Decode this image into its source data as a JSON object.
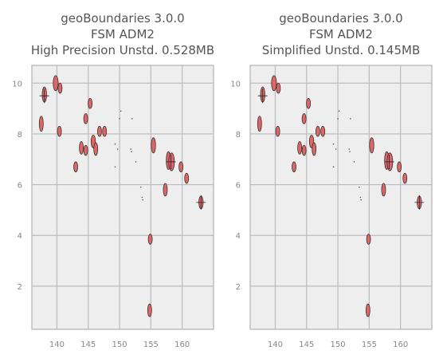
{
  "chart_data": [
    {
      "type": "map",
      "title_lines": [
        "geoBoundaries 3.0.0",
        "FSM ADM2",
        "High Precision Unstd. 0.528MB"
      ],
      "xlim": [
        136,
        165
      ],
      "ylim": [
        0.3,
        10.7
      ],
      "xticks": [
        140,
        145,
        150,
        155,
        160
      ],
      "yticks": [
        2,
        4,
        6,
        8,
        10
      ],
      "grid": true,
      "colors": {
        "fill": "#e06666",
        "edge": "#333333",
        "background": "#eeeeee",
        "grid": "#bbbbbb"
      },
      "islands": [
        {
          "x": 138.0,
          "y": 9.55,
          "rx": 0.35,
          "ry": 0.3
        },
        {
          "x": 139.8,
          "y": 10.0,
          "rx": 0.4,
          "ry": 0.3
        },
        {
          "x": 140.5,
          "y": 9.8,
          "rx": 0.25,
          "ry": 0.2
        },
        {
          "x": 137.5,
          "y": 8.4,
          "rx": 0.3,
          "ry": 0.3
        },
        {
          "x": 140.4,
          "y": 8.1,
          "rx": 0.25,
          "ry": 0.2
        },
        {
          "x": 145.3,
          "y": 9.2,
          "rx": 0.3,
          "ry": 0.2
        },
        {
          "x": 144.6,
          "y": 8.6,
          "rx": 0.25,
          "ry": 0.2
        },
        {
          "x": 146.8,
          "y": 8.1,
          "rx": 0.25,
          "ry": 0.2
        },
        {
          "x": 147.6,
          "y": 8.1,
          "rx": 0.25,
          "ry": 0.2
        },
        {
          "x": 143.9,
          "y": 7.45,
          "rx": 0.3,
          "ry": 0.25
        },
        {
          "x": 144.6,
          "y": 7.35,
          "rx": 0.25,
          "ry": 0.2
        },
        {
          "x": 143.0,
          "y": 6.7,
          "rx": 0.25,
          "ry": 0.2
        },
        {
          "x": 145.8,
          "y": 7.7,
          "rx": 0.35,
          "ry": 0.25
        },
        {
          "x": 146.2,
          "y": 7.4,
          "rx": 0.3,
          "ry": 0.25
        },
        {
          "x": 155.4,
          "y": 7.55,
          "rx": 0.35,
          "ry": 0.3
        },
        {
          "x": 157.8,
          "y": 6.95,
          "rx": 0.35,
          "ry": 0.35
        },
        {
          "x": 158.3,
          "y": 6.9,
          "rx": 0.45,
          "ry": 0.35
        },
        {
          "x": 159.8,
          "y": 6.7,
          "rx": 0.25,
          "ry": 0.2
        },
        {
          "x": 160.7,
          "y": 6.25,
          "rx": 0.25,
          "ry": 0.2
        },
        {
          "x": 157.3,
          "y": 5.8,
          "rx": 0.3,
          "ry": 0.25
        },
        {
          "x": 163.0,
          "y": 5.3,
          "rx": 0.35,
          "ry": 0.25
        },
        {
          "x": 154.9,
          "y": 3.85,
          "rx": 0.25,
          "ry": 0.2
        },
        {
          "x": 154.8,
          "y": 1.05,
          "rx": 0.3,
          "ry": 0.25
        }
      ],
      "dots": [
        {
          "x": 150.0,
          "y": 8.6
        },
        {
          "x": 150.2,
          "y": 8.9
        },
        {
          "x": 152.0,
          "y": 8.6
        },
        {
          "x": 149.3,
          "y": 7.6
        },
        {
          "x": 149.7,
          "y": 7.4
        },
        {
          "x": 151.8,
          "y": 7.4
        },
        {
          "x": 151.9,
          "y": 7.3
        },
        {
          "x": 152.6,
          "y": 6.9
        },
        {
          "x": 149.3,
          "y": 6.7
        },
        {
          "x": 153.4,
          "y": 5.9
        },
        {
          "x": 153.6,
          "y": 5.5
        },
        {
          "x": 153.7,
          "y": 5.4
        }
      ],
      "marks": [
        {
          "x": 158.2,
          "y": 6.9
        },
        {
          "x": 163.0,
          "y": 5.3
        },
        {
          "x": 138.0,
          "y": 9.5
        }
      ]
    },
    {
      "type": "map",
      "title_lines": [
        "geoBoundaries 3.0.0",
        "FSM ADM2",
        "Simplified Unstd. 0.145MB"
      ],
      "xlim": [
        136,
        165
      ],
      "ylim": [
        0.3,
        10.7
      ],
      "xticks": [
        140,
        145,
        150,
        155,
        160
      ],
      "yticks": [
        2,
        4,
        6,
        8,
        10
      ],
      "grid": true,
      "colors": {
        "fill": "#e06666",
        "edge": "#333333",
        "background": "#eeeeee",
        "grid": "#bbbbbb"
      },
      "islands": [
        {
          "x": 138.0,
          "y": 9.55,
          "rx": 0.35,
          "ry": 0.3
        },
        {
          "x": 139.8,
          "y": 10.0,
          "rx": 0.4,
          "ry": 0.3
        },
        {
          "x": 140.5,
          "y": 9.8,
          "rx": 0.25,
          "ry": 0.2
        },
        {
          "x": 137.5,
          "y": 8.4,
          "rx": 0.3,
          "ry": 0.3
        },
        {
          "x": 140.4,
          "y": 8.1,
          "rx": 0.25,
          "ry": 0.2
        },
        {
          "x": 145.3,
          "y": 9.2,
          "rx": 0.3,
          "ry": 0.2
        },
        {
          "x": 144.6,
          "y": 8.6,
          "rx": 0.25,
          "ry": 0.2
        },
        {
          "x": 146.8,
          "y": 8.1,
          "rx": 0.25,
          "ry": 0.2
        },
        {
          "x": 147.6,
          "y": 8.1,
          "rx": 0.25,
          "ry": 0.2
        },
        {
          "x": 143.9,
          "y": 7.45,
          "rx": 0.3,
          "ry": 0.25
        },
        {
          "x": 144.6,
          "y": 7.35,
          "rx": 0.25,
          "ry": 0.2
        },
        {
          "x": 143.0,
          "y": 6.7,
          "rx": 0.25,
          "ry": 0.2
        },
        {
          "x": 145.8,
          "y": 7.7,
          "rx": 0.35,
          "ry": 0.25
        },
        {
          "x": 146.2,
          "y": 7.4,
          "rx": 0.3,
          "ry": 0.25
        },
        {
          "x": 155.4,
          "y": 7.55,
          "rx": 0.35,
          "ry": 0.3
        },
        {
          "x": 157.8,
          "y": 6.95,
          "rx": 0.35,
          "ry": 0.35
        },
        {
          "x": 158.3,
          "y": 6.9,
          "rx": 0.45,
          "ry": 0.35
        },
        {
          "x": 159.8,
          "y": 6.7,
          "rx": 0.25,
          "ry": 0.2
        },
        {
          "x": 160.7,
          "y": 6.25,
          "rx": 0.25,
          "ry": 0.2
        },
        {
          "x": 157.3,
          "y": 5.8,
          "rx": 0.3,
          "ry": 0.25
        },
        {
          "x": 163.0,
          "y": 5.3,
          "rx": 0.35,
          "ry": 0.25
        },
        {
          "x": 154.9,
          "y": 3.85,
          "rx": 0.25,
          "ry": 0.2
        },
        {
          "x": 154.8,
          "y": 1.05,
          "rx": 0.3,
          "ry": 0.25
        }
      ],
      "dots": [
        {
          "x": 150.0,
          "y": 8.6
        },
        {
          "x": 150.2,
          "y": 8.9
        },
        {
          "x": 152.0,
          "y": 8.6
        },
        {
          "x": 149.3,
          "y": 7.6
        },
        {
          "x": 149.7,
          "y": 7.4
        },
        {
          "x": 151.8,
          "y": 7.4
        },
        {
          "x": 151.9,
          "y": 7.3
        },
        {
          "x": 152.6,
          "y": 6.9
        },
        {
          "x": 149.3,
          "y": 6.7
        },
        {
          "x": 153.4,
          "y": 5.9
        },
        {
          "x": 153.6,
          "y": 5.5
        },
        {
          "x": 153.7,
          "y": 5.4
        }
      ],
      "marks": [
        {
          "x": 158.2,
          "y": 6.9
        },
        {
          "x": 163.0,
          "y": 5.3
        },
        {
          "x": 138.0,
          "y": 9.5
        }
      ]
    }
  ]
}
